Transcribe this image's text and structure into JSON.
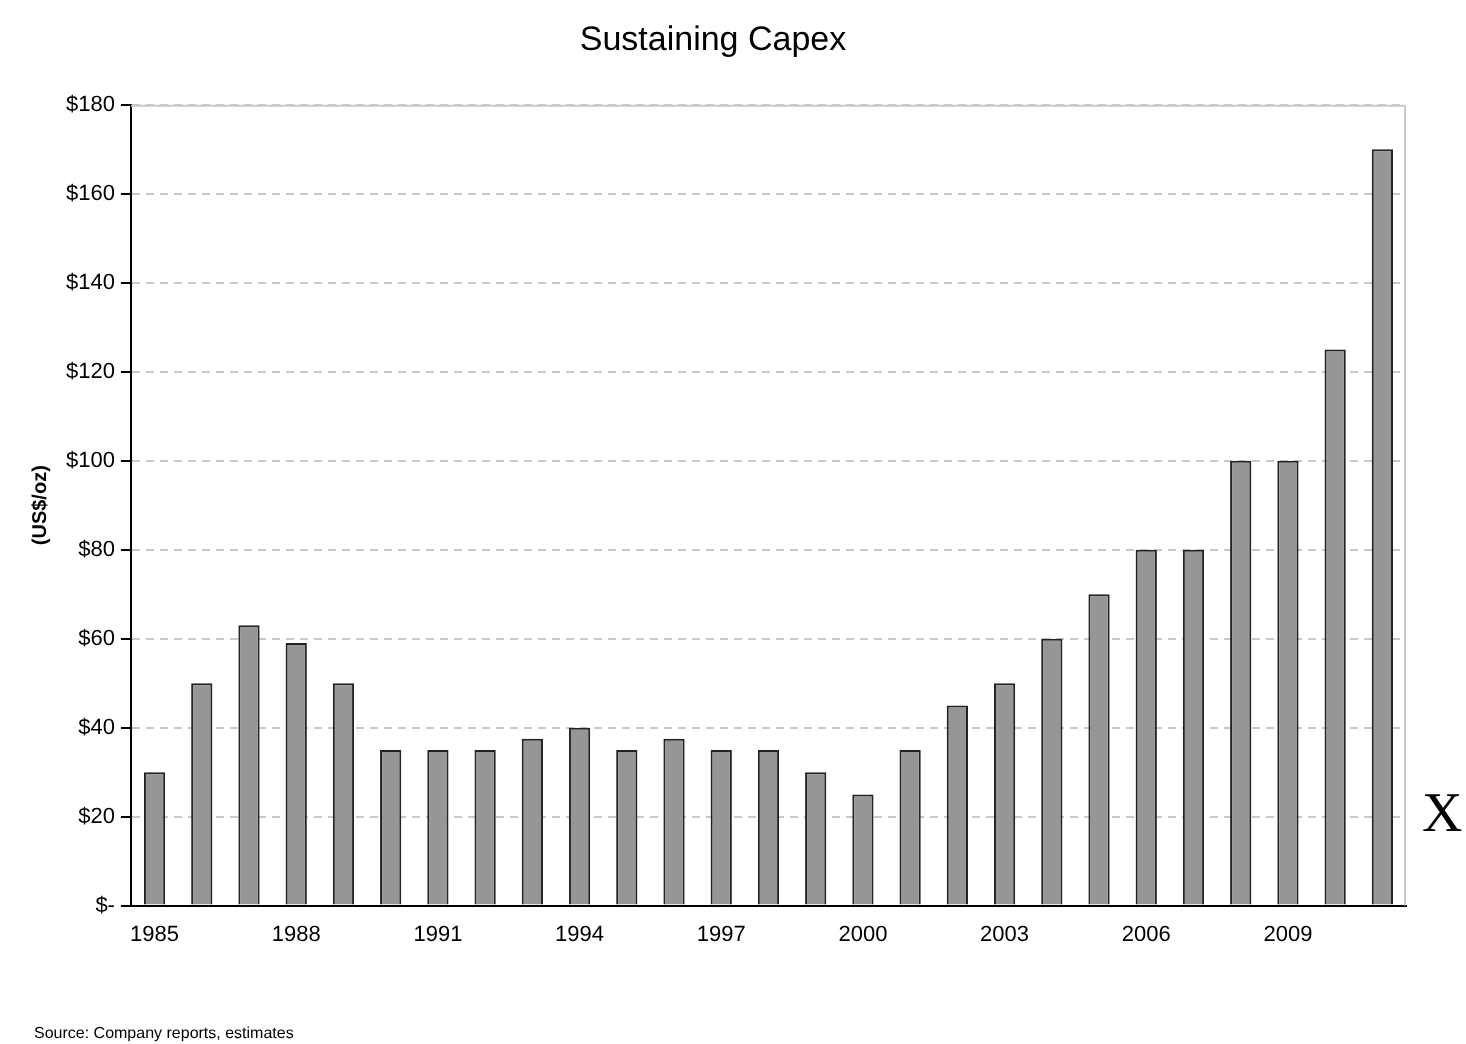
{
  "chart_data": {
    "type": "bar",
    "title": "Sustaining Capex",
    "ylabel": "(US$/oz)",
    "categories": [
      "1985",
      null,
      null,
      "1988",
      null,
      null,
      "1991",
      null,
      null,
      "1994",
      null,
      null,
      "1997",
      null,
      null,
      "2000",
      null,
      null,
      "2003",
      null,
      null,
      "2006",
      null,
      null,
      "2009",
      null,
      null
    ],
    "values": [
      30,
      50,
      63,
      59,
      50,
      35,
      35,
      35,
      37.5,
      40,
      35,
      37.5,
      35,
      35,
      30,
      25,
      35,
      45,
      50,
      60,
      70,
      80,
      80,
      100,
      100,
      125,
      170
    ],
    "color": "#969696",
    "ylim": [
      0,
      180
    ],
    "yticks": [
      {
        "value": 0,
        "label": "$-"
      },
      {
        "value": 20,
        "label": "$20"
      },
      {
        "value": 40,
        "label": "$40"
      },
      {
        "value": 60,
        "label": "$60"
      },
      {
        "value": 80,
        "label": "$80"
      },
      {
        "value": 100,
        "label": "$100"
      },
      {
        "value": 120,
        "label": "$120"
      },
      {
        "value": 140,
        "label": "$140"
      },
      {
        "value": 160,
        "label": "$160"
      },
      {
        "value": 180,
        "label": "$180"
      }
    ],
    "grid": "y",
    "annotations": [
      "X",
      "Source: Company reports, estimates"
    ]
  }
}
